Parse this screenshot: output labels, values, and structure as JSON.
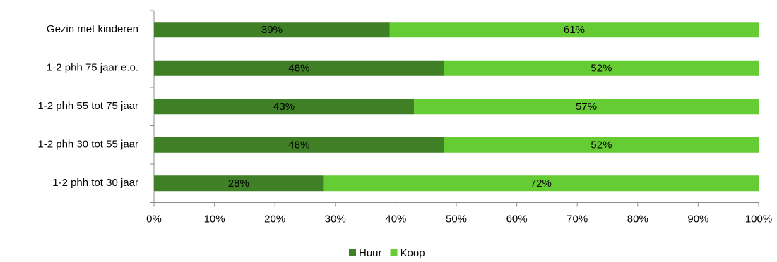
{
  "chart_data": {
    "type": "bar",
    "orientation": "horizontal",
    "stacked": true,
    "percent_stacked": true,
    "categories": [
      "Gezin met kinderen",
      "1-2 phh 75 jaar e.o.",
      "1-2 phh 55 tot 75 jaar",
      "1-2 phh 30 tot 55 jaar",
      "1-2 phh tot 30 jaar"
    ],
    "series": [
      {
        "name": "Huur",
        "color": "#3f7f25",
        "values": [
          39,
          48,
          43,
          48,
          28
        ],
        "labels": [
          "39%",
          "48%",
          "43%",
          "48%",
          "28%"
        ]
      },
      {
        "name": "Koop",
        "color": "#66cc33",
        "values": [
          61,
          52,
          57,
          52,
          72
        ],
        "labels": [
          "61%",
          "52%",
          "57%",
          "52%",
          "72%"
        ]
      }
    ],
    "xlim": [
      0,
      100
    ],
    "x_ticks": [
      "0%",
      "10%",
      "20%",
      "30%",
      "40%",
      "50%",
      "60%",
      "70%",
      "80%",
      "90%",
      "100%"
    ],
    "title": "",
    "xlabel": "",
    "ylabel": "",
    "grid": false,
    "legend_position": "bottom"
  }
}
